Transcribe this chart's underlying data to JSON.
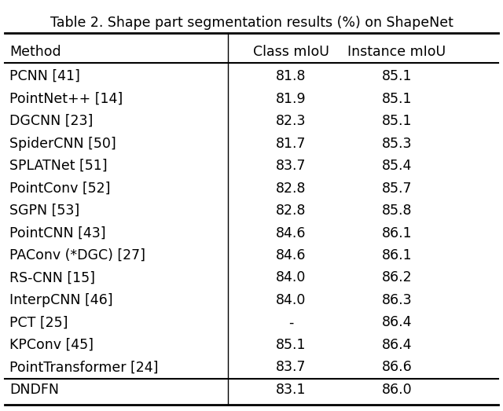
{
  "title": "Table 2. Shape part segmentation results (%) on ShapeNet",
  "columns": [
    "Method",
    "Class mIoU",
    "Instance mIoU"
  ],
  "rows": [
    [
      "PCNN [41]",
      "81.8",
      "85.1"
    ],
    [
      "PointNet++ [14]",
      "81.9",
      "85.1"
    ],
    [
      "DGCNN [23]",
      "82.3",
      "85.1"
    ],
    [
      "SpiderCNN [50]",
      "81.7",
      "85.3"
    ],
    [
      "SPLATNet [51]",
      "83.7",
      "85.4"
    ],
    [
      "PointConv [52]",
      "82.8",
      "85.7"
    ],
    [
      "SGPN [53]",
      "82.8",
      "85.8"
    ],
    [
      "PointCNN [43]",
      "84.6",
      "86.1"
    ],
    [
      "PAConv (*DGC) [27]",
      "84.6",
      "86.1"
    ],
    [
      "RS-CNN [15]",
      "84.0",
      "86.2"
    ],
    [
      "InterpCNN [46]",
      "84.0",
      "86.3"
    ],
    [
      "PCT [25]",
      "-",
      "86.4"
    ],
    [
      "KPConv [45]",
      "85.1",
      "86.4"
    ],
    [
      "PointTransformer [24]",
      "83.7",
      "86.6"
    ],
    [
      "DNDFN",
      "83.1",
      "86.0"
    ]
  ],
  "last_row_bold": false,
  "bg_color": "#ffffff",
  "text_color": "#000000",
  "title_fontsize": 12.5,
  "header_fontsize": 12.5,
  "body_fontsize": 12.5
}
